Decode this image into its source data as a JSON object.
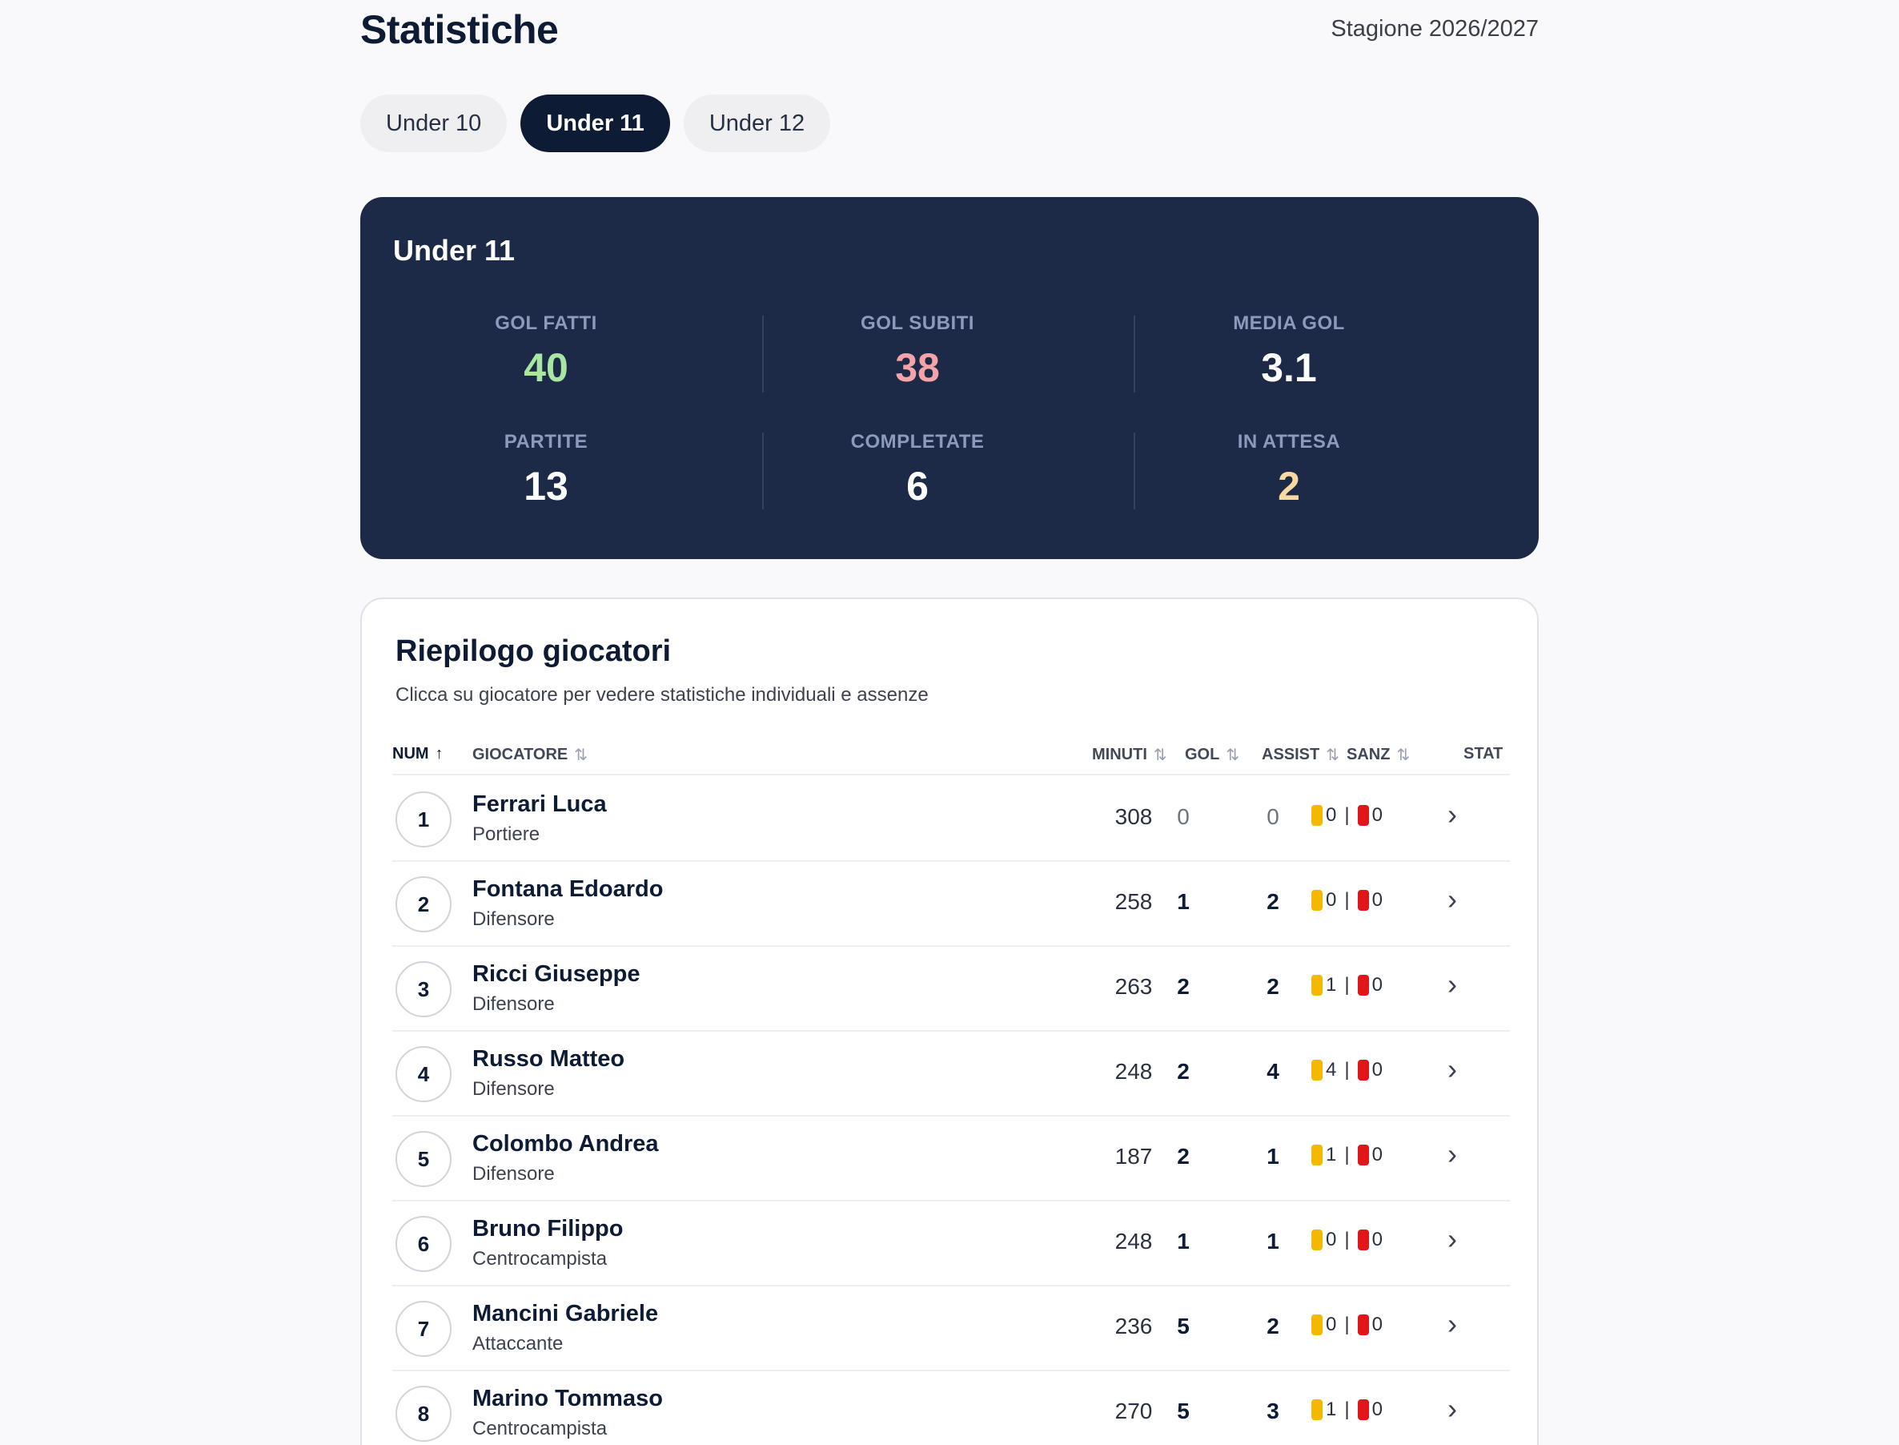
{
  "header": {
    "title": "Statistiche",
    "season": "Stagione 2026/2027"
  },
  "tabs": [
    {
      "label": "Under 10",
      "active": false
    },
    {
      "label": "Under 11",
      "active": true
    },
    {
      "label": "Under 12",
      "active": false
    }
  ],
  "summary": {
    "title": "Under 11",
    "stats": [
      {
        "label": "GOL FATTI",
        "value": "40",
        "color": "#a8e6a1"
      },
      {
        "label": "GOL SUBITI",
        "value": "38",
        "color": "#f4a3a8"
      },
      {
        "label": "MEDIA GOL",
        "value": "3.1",
        "color": "#ffffff"
      },
      {
        "label": "PARTITE",
        "value": "13",
        "color": "#ffffff"
      },
      {
        "label": "COMPLETATE",
        "value": "6",
        "color": "#ffffff"
      },
      {
        "label": "IN ATTESA",
        "value": "2",
        "color": "#f8d9a0"
      }
    ]
  },
  "players_card": {
    "title": "Riepilogo giocatori",
    "subtitle": "Clicca su giocatore per vedere statistiche individuali e assenze",
    "columns": {
      "num": "NUM",
      "player": "GIOCATORE",
      "minutes": "MINUTI",
      "goals": "GOL",
      "assists": "ASSIST",
      "sanctions": "SANZ",
      "stats": "STAT"
    },
    "rows": [
      {
        "num": "1",
        "name": "Ferrari Luca",
        "role": "Portiere",
        "minutes": "308",
        "goals": "0",
        "assists": "0",
        "yellow": "0",
        "red": "0"
      },
      {
        "num": "2",
        "name": "Fontana Edoardo",
        "role": "Difensore",
        "minutes": "258",
        "goals": "1",
        "assists": "2",
        "yellow": "0",
        "red": "0"
      },
      {
        "num": "3",
        "name": "Ricci Giuseppe",
        "role": "Difensore",
        "minutes": "263",
        "goals": "2",
        "assists": "2",
        "yellow": "1",
        "red": "0"
      },
      {
        "num": "4",
        "name": "Russo Matteo",
        "role": "Difensore",
        "minutes": "248",
        "goals": "2",
        "assists": "4",
        "yellow": "4",
        "red": "0"
      },
      {
        "num": "5",
        "name": "Colombo Andrea",
        "role": "Difensore",
        "minutes": "187",
        "goals": "2",
        "assists": "1",
        "yellow": "1",
        "red": "0"
      },
      {
        "num": "6",
        "name": "Bruno Filippo",
        "role": "Centrocampista",
        "minutes": "248",
        "goals": "1",
        "assists": "1",
        "yellow": "0",
        "red": "0"
      },
      {
        "num": "7",
        "name": "Mancini Gabriele",
        "role": "Attaccante",
        "minutes": "236",
        "goals": "5",
        "assists": "2",
        "yellow": "0",
        "red": "0"
      },
      {
        "num": "8",
        "name": "Marino Tommaso",
        "role": "Centrocampista",
        "minutes": "270",
        "goals": "5",
        "assists": "3",
        "yellow": "1",
        "red": "0"
      }
    ]
  }
}
